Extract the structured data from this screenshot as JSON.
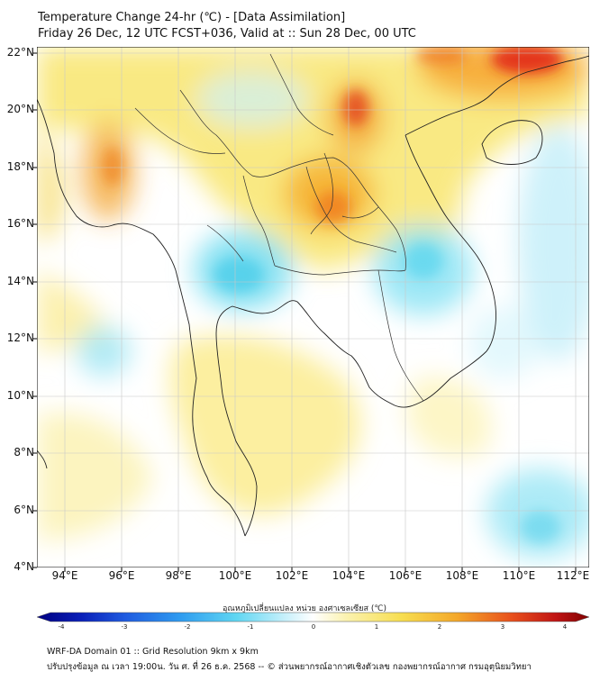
{
  "header": {
    "title": "Temperature Change 24-hr (℃) - [Data Assimilation]",
    "subtitle": "Friday 26 Dec, 12 UTC FCST+036, Valid at :: Sun 28 Dec, 00 UTC"
  },
  "map": {
    "lat_labels": [
      "22°N",
      "20°N",
      "18°N",
      "16°N",
      "14°N",
      "12°N",
      "10°N",
      "8°N",
      "6°N",
      "4°N"
    ],
    "lon_labels": [
      "94°E",
      "96°E",
      "98°E",
      "100°E",
      "102°E",
      "104°E",
      "106°E",
      "108°E",
      "110°E",
      "112°E"
    ],
    "lat_range": [
      4,
      22.3
    ],
    "lon_range": [
      93,
      112.5
    ],
    "field": "24-hr temperature change",
    "warm_areas": [
      {
        "lon": 110.2,
        "lat": 22.0,
        "value": 3.4
      },
      {
        "lon": 107.5,
        "lat": 22.1,
        "value": 2.8
      },
      {
        "lon": 103.6,
        "lat": 19.9,
        "value": 3.0
      },
      {
        "lon": 103.2,
        "lat": 16.5,
        "value": 2.6
      },
      {
        "lon": 95.7,
        "lat": 18.2,
        "value": 2.4
      },
      {
        "lon": 95.2,
        "lat": 16.3,
        "value": 1.9
      }
    ],
    "cool_areas": [
      {
        "lon": 100.3,
        "lat": 14.5,
        "value": -1.3
      },
      {
        "lon": 106.3,
        "lat": 14.3,
        "value": -1.1
      },
      {
        "lon": 95.3,
        "lat": 11.5,
        "value": -1.1
      },
      {
        "lon": 110.7,
        "lat": 6.3,
        "value": -1.2
      }
    ]
  },
  "colorbar": {
    "title": "อุณหภูมิเปลี่ยนแปลง หน่วย องศาเซลเซียส (℃)",
    "ticks": [
      "-4",
      "-3",
      "-2",
      "-1",
      "0",
      "1",
      "2",
      "3",
      "4"
    ],
    "min": -4,
    "max": 4
  },
  "footer": {
    "line1": "WRF-DA Domain 01 :: Grid Resolution 9km x 9km",
    "line2": "ปรับปรุงข้อมูล ณ เวลา 19:00น. วัน ศ. ที่ 26 ธ.ค. 2568 -- © ส่วนพยากรณ์อากาศเชิงตัวเลข กองพยากรณ์อากาศ กรมอุตุนิยมวิทยา"
  }
}
